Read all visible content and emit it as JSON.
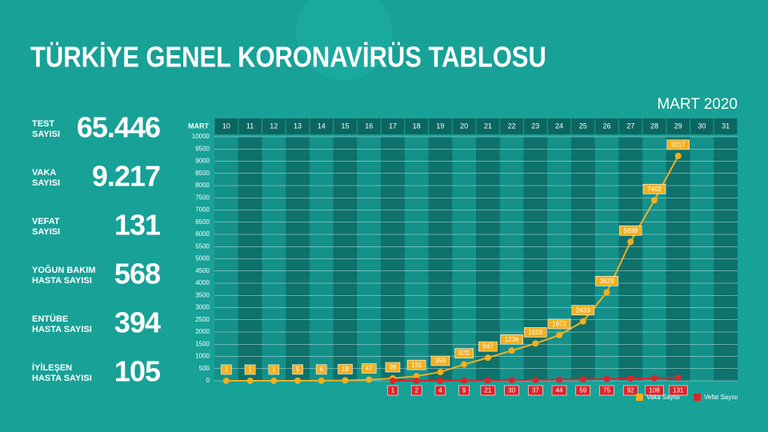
{
  "chart_data": {
    "type": "line",
    "title": "TÜRKİYE GENEL KORONAVİRÜS TABLOSU",
    "subtitle": "MART 2020",
    "x_label": "MART",
    "categories": [
      "10",
      "11",
      "12",
      "13",
      "14",
      "15",
      "16",
      "17",
      "18",
      "19",
      "20",
      "21",
      "22",
      "23",
      "24",
      "25",
      "26",
      "27",
      "28",
      "29",
      "30",
      "31"
    ],
    "series": [
      {
        "name": "Vaka Sayısı",
        "color": "#f2b01e",
        "values": [
          1,
          1,
          1,
          5,
          6,
          18,
          47,
          98,
          191,
          359,
          670,
          947,
          1236,
          1529,
          1872,
          2433,
          3629,
          5698,
          7402,
          9217,
          null,
          null
        ]
      },
      {
        "name": "Vefat Sayısı",
        "color": "#d8262c",
        "values": [
          null,
          null,
          null,
          null,
          null,
          null,
          null,
          1,
          2,
          4,
          9,
          21,
          30,
          37,
          44,
          59,
          75,
          92,
          108,
          131,
          null,
          null
        ]
      }
    ],
    "ylim": [
      0,
      10000
    ],
    "yticks": [
      0,
      500,
      1000,
      1500,
      2000,
      2500,
      3000,
      3500,
      4000,
      4500,
      5000,
      5500,
      6000,
      6500,
      7000,
      7500,
      8000,
      8500,
      9000,
      9500,
      10000
    ],
    "grid": true,
    "legend": "bottom-right"
  },
  "stats": [
    {
      "label": [
        "TEST",
        "SAYISI"
      ],
      "value": "65.446"
    },
    {
      "label": [
        "VAKA",
        "SAYISI"
      ],
      "value": "9.217"
    },
    {
      "label": [
        "VEFAT",
        "SAYISI"
      ],
      "value": "131"
    },
    {
      "label": [
        "YOĞUN BAKIM",
        "HASTA SAYISI"
      ],
      "value": "568"
    },
    {
      "label": [
        "ENTÜBE",
        "HASTA SAYISI"
      ],
      "value": "394"
    },
    {
      "label": [
        "İYİLEŞEN",
        "HASTA SAYISI"
      ],
      "value": "105"
    }
  ]
}
